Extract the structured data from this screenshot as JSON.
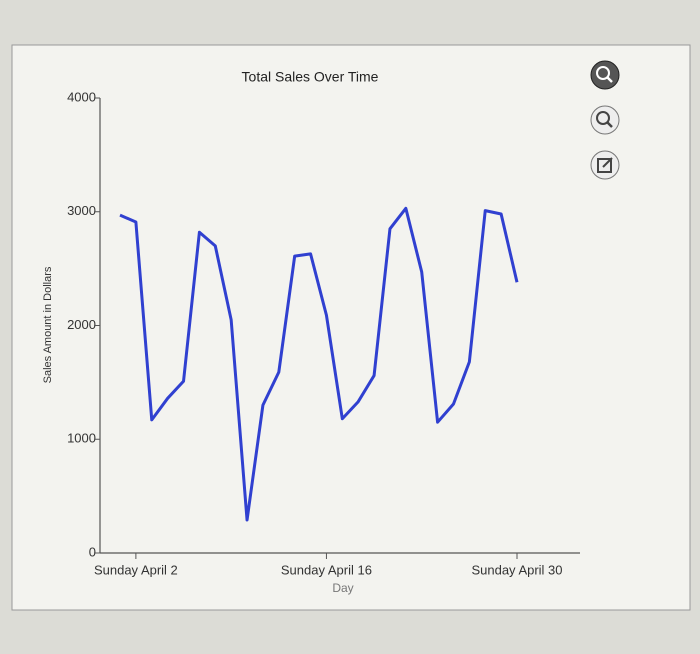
{
  "chart_data": {
    "type": "line",
    "title": "Total Sales Over Time",
    "x_label": "Day",
    "y_label": "Sales Amount in Dollars",
    "categories": [
      null,
      "Sunday April 2",
      null,
      null,
      null,
      null,
      null,
      null,
      null,
      null,
      null,
      null,
      null,
      "Sunday April 16",
      null,
      null,
      null,
      null,
      null,
      null,
      null,
      null,
      null,
      null,
      null,
      "Sunday April 30"
    ],
    "values": [
      2970,
      2910,
      1170,
      1360,
      1510,
      2820,
      2700,
      2050,
      290,
      1300,
      1590,
      2610,
      2630,
      2090,
      1180,
      1330,
      1560,
      2850,
      3030,
      2470,
      1150,
      1310,
      1680,
      3010,
      2980,
      2380
    ],
    "color": "#3040d0",
    "ylim": [
      0,
      4000
    ],
    "yticks": [
      0,
      1000,
      2000,
      3000,
      4000
    ],
    "grid": false
  }
}
